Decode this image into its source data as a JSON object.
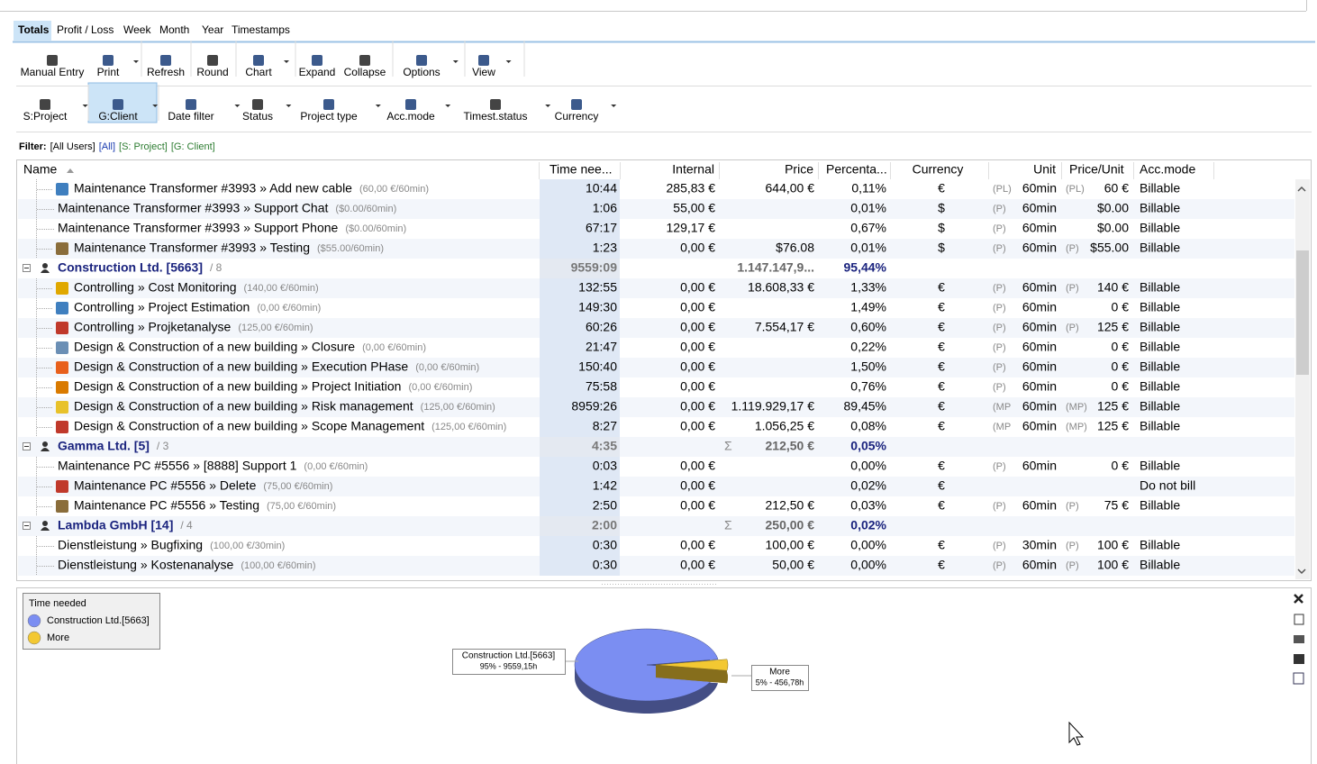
{
  "tabs": [
    "Totals",
    "Profit / Loss",
    "Week",
    "Month",
    "Year",
    "Timestamps"
  ],
  "active_tab": 0,
  "toolbar": [
    {
      "label": "Manual Entry",
      "dropdown": false
    },
    {
      "label": "Print",
      "dropdown": true
    },
    {
      "label": "Refresh",
      "dropdown": false
    },
    {
      "label": "Round",
      "dropdown": false
    },
    {
      "label": "Chart",
      "dropdown": true
    },
    {
      "label": "Expand",
      "dropdown": false
    },
    {
      "label": "Collapse",
      "dropdown": false
    },
    {
      "label": "Options",
      "dropdown": true
    },
    {
      "label": "View",
      "dropdown": true
    }
  ],
  "filter_toolbar": [
    {
      "label": "S:Project",
      "dropdown": true
    },
    {
      "label": "G:Client",
      "dropdown": true,
      "active": true
    },
    {
      "label": "Date filter",
      "dropdown": true
    },
    {
      "label": "Status",
      "dropdown": true
    },
    {
      "label": "Project type",
      "dropdown": true
    },
    {
      "label": "Acc.mode",
      "dropdown": true
    },
    {
      "label": "Timest.status",
      "dropdown": true
    },
    {
      "label": "Currency",
      "dropdown": true
    }
  ],
  "filter": {
    "label": "Filter:",
    "users": "[All Users]",
    "all": "[All]",
    "sort": "[S: Project]",
    "group": "[G: Client]"
  },
  "columns": [
    "Name",
    "Time nee...",
    "Internal",
    "Price",
    "Percenta...",
    "Currency",
    "Unit",
    "Price/Unit",
    "Acc.mode"
  ],
  "rows": [
    {
      "kind": "item",
      "icon": "chart",
      "name": "Maintenance Transformer #3993 » Add new cable",
      "rate": "(60,00 €/60min)",
      "time": "10:44",
      "internal": "285,83 €",
      "price": "644,00 €",
      "percent": "0,11%",
      "currency": "€",
      "unit_prefix": "(PL)",
      "unit": "60min",
      "ppu_prefix": "(PL)",
      "ppu": "60 €",
      "acc_mode": "Billable"
    },
    {
      "kind": "item",
      "name": "Maintenance Transformer #3993 » Support Chat",
      "rate": "($0.00/60min)",
      "time": "1:06",
      "internal": "55,00 €",
      "percent": "0,01%",
      "currency": "$",
      "unit_prefix": "(P)",
      "unit": "60min",
      "ppu": "$0.00",
      "acc_mode": "Billable"
    },
    {
      "kind": "item",
      "name": "Maintenance Transformer #3993 » Support Phone",
      "rate": "($0.00/60min)",
      "time": "67:17",
      "internal": "129,17 €",
      "percent": "0,67%",
      "currency": "$",
      "unit_prefix": "(P)",
      "unit": "60min",
      "ppu": "$0.00",
      "acc_mode": "Billable"
    },
    {
      "kind": "item",
      "icon": "tester",
      "name": "Maintenance Transformer #3993 » Testing",
      "rate": "($55.00/60min)",
      "time": "1:23",
      "internal": "0,00 €",
      "price": "$76.08",
      "percent": "0,01%",
      "currency": "$",
      "unit_prefix": "(P)",
      "unit": "60min",
      "ppu_prefix": "(P)",
      "ppu": "$55.00",
      "acc_mode": "Billable"
    },
    {
      "kind": "group",
      "name": "Construction Ltd. [5663]",
      "count": "/ 8",
      "time": "9559:09",
      "price": "1.147.147,9...",
      "percent": "95,44%"
    },
    {
      "kind": "item",
      "icon": "coin",
      "name": "Controlling » Cost Monitoring",
      "rate": "(140,00 €/60min)",
      "time": "132:55",
      "internal": "0,00 €",
      "price": "18.608,33 €",
      "percent": "1,33%",
      "currency": "€",
      "unit_prefix": "(P)",
      "unit": "60min",
      "ppu_prefix": "(P)",
      "ppu": "140 €",
      "acc_mode": "Billable"
    },
    {
      "kind": "item",
      "icon": "chart",
      "name": "Controlling » Project Estimation",
      "rate": "(0,00 €/60min)",
      "time": "149:30",
      "internal": "0,00 €",
      "percent": "1,49%",
      "currency": "€",
      "unit_prefix": "(P)",
      "unit": "60min",
      "ppu": "0 €",
      "acc_mode": "Billable"
    },
    {
      "kind": "item",
      "icon": "check",
      "name": "Controlling » Projketanalyse",
      "rate": "(125,00 €/60min)",
      "time": "60:26",
      "internal": "0,00 €",
      "price": "7.554,17 €",
      "percent": "0,60%",
      "currency": "€",
      "unit_prefix": "(P)",
      "unit": "60min",
      "ppu_prefix": "(P)",
      "ppu": "125 €",
      "acc_mode": "Billable"
    },
    {
      "kind": "item",
      "icon": "question",
      "name": "Design & Construction of a new building » Closure",
      "rate": "(0,00 €/60min)",
      "time": "21:47",
      "internal": "0,00 €",
      "percent": "0,22%",
      "currency": "€",
      "unit_prefix": "(P)",
      "unit": "60min",
      "ppu": "0 €",
      "acc_mode": "Billable"
    },
    {
      "kind": "item",
      "icon": "fire",
      "name": "Design & Construction of a new building » Execution PHase",
      "rate": "(0,00 €/60min)",
      "time": "150:40",
      "internal": "0,00 €",
      "percent": "1,50%",
      "currency": "€",
      "unit_prefix": "(P)",
      "unit": "60min",
      "ppu": "0 €",
      "acc_mode": "Billable"
    },
    {
      "kind": "item",
      "icon": "puzzle",
      "name": "Design & Construction of a new building » Project Initiation",
      "rate": "(0,00 €/60min)",
      "time": "75:58",
      "internal": "0,00 €",
      "percent": "0,76%",
      "currency": "€",
      "unit_prefix": "(P)",
      "unit": "60min",
      "ppu": "0 €",
      "acc_mode": "Billable"
    },
    {
      "kind": "item",
      "icon": "star",
      "name": "Design & Construction of a new building » Risk management",
      "rate": "(125,00 €/60min)",
      "time": "8959:26",
      "internal": "0,00 €",
      "price": "1.119.929,17 €",
      "percent": "89,45%",
      "currency": "€",
      "unit_prefix": "(MP",
      "unit": "60min",
      "ppu_prefix": "(MP)",
      "ppu": "125 €",
      "acc_mode": "Billable"
    },
    {
      "kind": "item",
      "icon": "check",
      "name": "Design & Construction of a new building » Scope Management",
      "rate": "(125,00 €/60min)",
      "time": "8:27",
      "internal": "0,00 €",
      "price": "1.056,25 €",
      "percent": "0,08%",
      "currency": "€",
      "unit_prefix": "(MP",
      "unit": "60min",
      "ppu_prefix": "(MP)",
      "ppu": "125 €",
      "acc_mode": "Billable"
    },
    {
      "kind": "group",
      "name": "Gamma Ltd. [5]",
      "count": "/ 3",
      "time": "4:35",
      "sigma": "Σ",
      "price": "212,50 €",
      "percent": "0,05%"
    },
    {
      "kind": "item",
      "name": "Maintenance PC #5556 » [8888] Support 1",
      "rate": "(0,00 €/60min)",
      "time": "0:03",
      "internal": "0,00 €",
      "percent": "0,00%",
      "currency": "€",
      "unit_prefix": "(P)",
      "unit": "60min",
      "ppu": "0 €",
      "acc_mode": "Billable"
    },
    {
      "kind": "item",
      "icon": "check",
      "name": "Maintenance PC #5556 » Delete",
      "rate": "(75,00 €/60min)",
      "time": "1:42",
      "internal": "0,00 €",
      "percent": "0,02%",
      "currency": "€",
      "acc_mode": "Do not bill"
    },
    {
      "kind": "item",
      "icon": "tester",
      "name": "Maintenance PC #5556 » Testing",
      "rate": "(75,00 €/60min)",
      "time": "2:50",
      "internal": "0,00 €",
      "price": "212,50 €",
      "percent": "0,03%",
      "currency": "€",
      "unit_prefix": "(P)",
      "unit": "60min",
      "ppu_prefix": "(P)",
      "ppu": "75 €",
      "acc_mode": "Billable"
    },
    {
      "kind": "group",
      "name": "Lambda GmbH [14]",
      "count": "/ 4",
      "time": "2:00",
      "sigma": "Σ",
      "price": "250,00 €",
      "percent": "0,02%"
    },
    {
      "kind": "item",
      "name": "Dienstleistung » Bugfixing",
      "rate": "(100,00 €/30min)",
      "time": "0:30",
      "internal": "0,00 €",
      "price": "100,00 €",
      "percent": "0,00%",
      "currency": "€",
      "unit_prefix": "(P)",
      "unit": "30min",
      "ppu_prefix": "(P)",
      "ppu": "100 €",
      "acc_mode": "Billable"
    },
    {
      "kind": "item",
      "name": "Dienstleistung » Kostenanalyse",
      "rate": "(100,00 €/60min)",
      "time": "0:30",
      "internal": "0,00 €",
      "price": "50,00 €",
      "percent": "0,00%",
      "currency": "€",
      "unit_prefix": "(P)",
      "unit": "60min",
      "ppu_prefix": "(P)",
      "ppu": "100 €",
      "acc_mode": "Billable"
    }
  ],
  "chart": {
    "legend_title": "Time needed",
    "slices": [
      {
        "name": "Construction Ltd.[5663]",
        "label": "95% - 9559,15h",
        "value": 95,
        "color": "#7b8ef2"
      },
      {
        "name": "More",
        "label": "5% - 456,78h",
        "value": 5,
        "color": "#f3c832"
      }
    ]
  }
}
